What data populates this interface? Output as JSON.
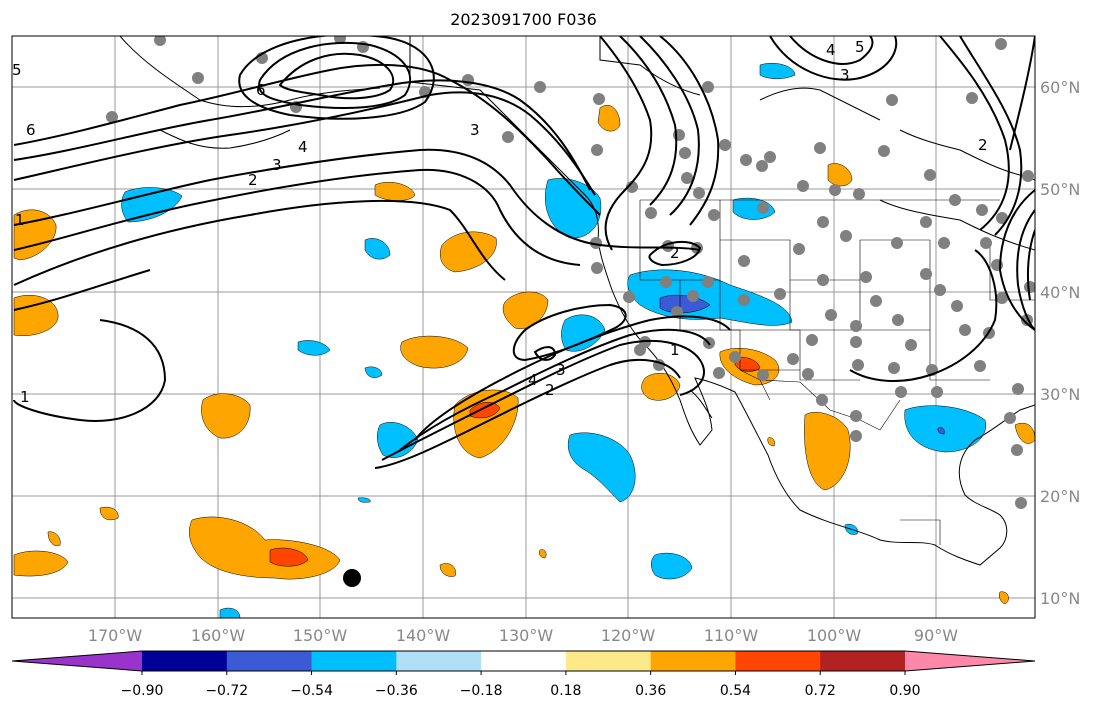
{
  "title": "2023091700 F036",
  "map": {
    "lon_ticks": [
      "170°W",
      "160°W",
      "150°W",
      "140°W",
      "130°W",
      "120°W",
      "110°W",
      "100°W",
      "90°W"
    ],
    "lat_ticks": [
      "60°N",
      "50°N",
      "40°N",
      "30°N",
      "20°N",
      "10°N"
    ],
    "contour_labels": [
      "6",
      "2",
      "3",
      "4",
      "6",
      "5",
      "3",
      "4",
      "5",
      "3",
      "2",
      "2",
      "1",
      "4",
      "3",
      "2",
      "1",
      "1"
    ]
  },
  "colorbar": {
    "tick_labels": [
      "−0.90",
      "−0.72",
      "−0.54",
      "−0.36",
      "−0.18",
      "0.18",
      "0.36",
      "0.54",
      "0.72",
      "0.90"
    ],
    "colors": [
      "#9933cc",
      "#000099",
      "#3b5bd6",
      "#00bfff",
      "#b0e0f8",
      "#ffffff",
      "#fde88a",
      "#ffa500",
      "#ff4500",
      "#b22222",
      "#ff88aa"
    ]
  }
}
